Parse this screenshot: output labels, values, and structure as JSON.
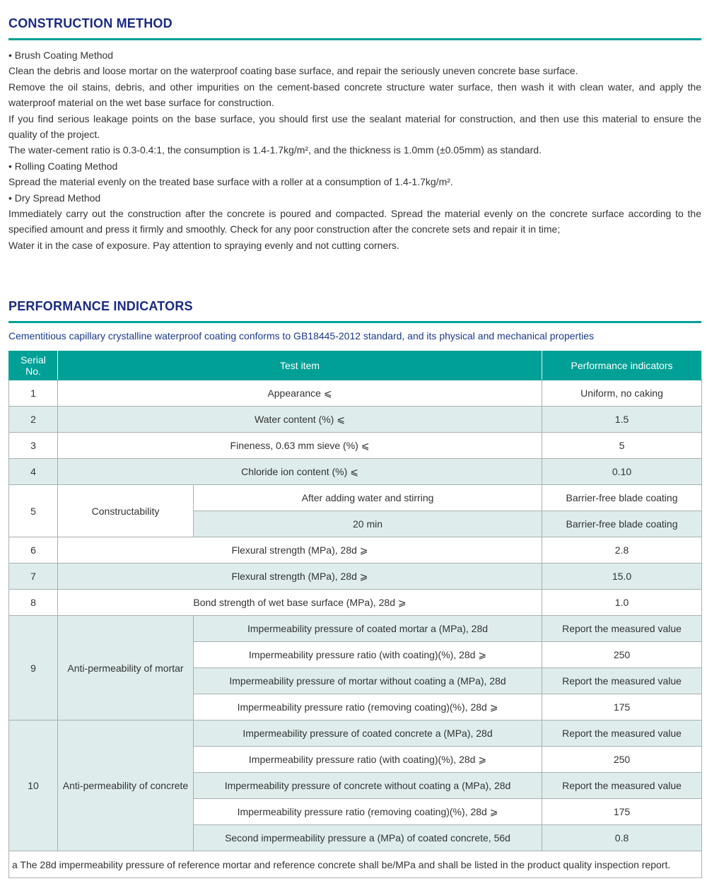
{
  "construction": {
    "title": "CONSTRUCTION METHOD",
    "paragraphs": [
      "• Brush Coating Method",
      "Clean the debris and loose mortar on the waterproof coating base surface, and repair the seriously uneven concrete base surface.",
      "Remove the oil stains, debris, and other impurities on the cement-based concrete structure water surface, then wash it with clean water, and apply the waterproof material on the wet base surface for construction.",
      "If you find serious leakage points on the base surface, you should first use the sealant material for construction, and then use this material to ensure the quality of the project.",
      "The water-cement ratio is 0.3-0.4:1, the consumption is 1.4-1.7kg/m², and the thickness is 1.0mm (±0.05mm) as standard.",
      "• Rolling Coating Method",
      "Spread the material evenly on the treated base surface with a roller at a consumption of 1.4-1.7kg/m².",
      "• Dry Spread Method",
      "Immediately carry out the construction after the concrete is poured and compacted. Spread the material evenly on the concrete surface according to the specified amount and press it firmly and smoothly. Check for any poor construction after the concrete sets and repair it in time;",
      "Water it in the case of exposure. Pay attention to spraying evenly and not cutting corners."
    ]
  },
  "performance": {
    "title": "PERFORMANCE INDICATORS",
    "intro": "Cementitious capillary crystalline waterproof coating conforms to GB18445-2012 standard, and its physical and mechanical properties",
    "headers": [
      "Serial No.",
      "Test item",
      "Performance indicators"
    ],
    "rows": [
      {
        "no": "1",
        "item": "Appearance ⩽",
        "value": "Uniform, no caking"
      },
      {
        "no": "2",
        "item": "Water content (%) ⩽",
        "value": "1.5"
      },
      {
        "no": "3",
        "item": "Fineness, 0.63 mm sieve (%) ⩽",
        "value": "5"
      },
      {
        "no": "4",
        "item": "Chloride ion content (%) ⩽",
        "value": "0.10"
      },
      {
        "no": "5",
        "group": "Constructability",
        "subs": [
          {
            "item": "After adding water and stirring",
            "value": "Barrier-free blade coating"
          },
          {
            "item": "20 min",
            "value": "Barrier-free blade coating"
          }
        ]
      },
      {
        "no": "6",
        "item": "Flexural strength (MPa), 28d ⩾",
        "value": "2.8"
      },
      {
        "no": "7",
        "item": "Flexural strength (MPa), 28d ⩾",
        "value": "15.0"
      },
      {
        "no": "8",
        "item": "Bond strength of wet base surface (MPa), 28d ⩾",
        "value": "1.0"
      },
      {
        "no": "9",
        "group": "Anti-permeability of mortar",
        "subs": [
          {
            "item": "Impermeability pressure of coated mortar a (MPa), 28d",
            "value": "Report the measured value"
          },
          {
            "item": "Impermeability pressure ratio (with coating)(%), 28d ⩾",
            "value": "250"
          },
          {
            "item": "Impermeability pressure of mortar without coating a (MPa), 28d",
            "value": "Report the measured value"
          },
          {
            "item": "Impermeability pressure ratio (removing coating)(%), 28d ⩾",
            "value": "175"
          }
        ]
      },
      {
        "no": "10",
        "group": "Anti-permeability of concrete",
        "subs": [
          {
            "item": "Impermeability pressure of coated concrete a (MPa), 28d",
            "value": "Report the measured value"
          },
          {
            "item": "Impermeability pressure ratio (with coating)(%), 28d ⩾",
            "value": "250"
          },
          {
            "item": "Impermeability pressure of concrete without coating a (MPa), 28d",
            "value": "Report the measured value"
          },
          {
            "item": "Impermeability pressure ratio (removing coating)(%), 28d ⩾",
            "value": "175"
          },
          {
            "item": "Second impermeability pressure a (MPa) of coated concrete, 56d",
            "value": "0.8"
          }
        ]
      }
    ],
    "footnote": "a The 28d impermeability pressure of reference mortar and reference concrete shall be/MPa and shall be listed in the product quality inspection report."
  },
  "colors": {
    "accent": "#00a096",
    "title": "#1a2a80",
    "stripe": "#deecec"
  }
}
